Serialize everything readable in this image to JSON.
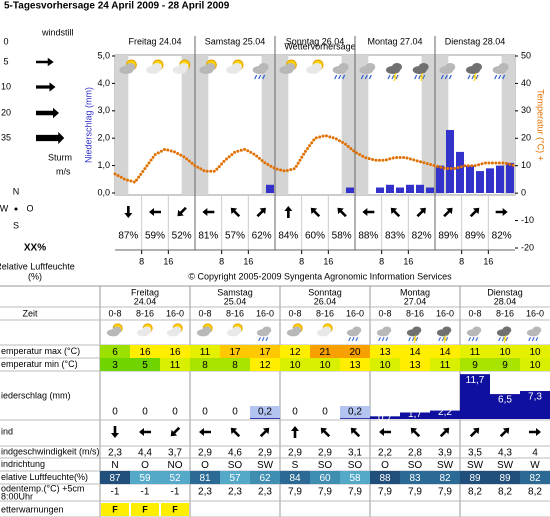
{
  "header": {
    "title": "5-Tagesvorhersage 24 April 2009 - 28 April 2009"
  },
  "legend": {
    "calm": "windstill",
    "speeds": [
      0,
      5,
      10,
      20,
      35
    ],
    "storm": "Sturm",
    "unit": "m/s",
    "compass": [
      "N",
      "W",
      "O",
      "S"
    ],
    "humidity_symbol": "XX%",
    "humidity_label": "Relative Luftfeuchte",
    "humidity_unit": "(%)"
  },
  "chart_data": {
    "type": "combo",
    "title": "Wettervorhersage",
    "days": [
      "Freitag 24.04",
      "Samstag 25.04",
      "Sonntag 26.04",
      "Montag 27.04",
      "Dienstag 28.04"
    ],
    "y_label": "Niederschlag (mm)",
    "y2_label": "Temperatur (°C) +",
    "xlim": [
      0,
      120
    ],
    "xticks": [
      8,
      16,
      {
        "value": 32,
        "label": "8"
      },
      {
        "value": 40,
        "label": "16"
      },
      {
        "value": 56,
        "label": "8"
      },
      {
        "value": 64,
        "label": "16"
      },
      {
        "value": 80,
        "label": "8"
      },
      {
        "value": 88,
        "label": "16"
      },
      {
        "value": 104,
        "label": "8"
      },
      {
        "value": 112,
        "label": "16"
      }
    ],
    "ylim": [
      0,
      5
    ],
    "yticks": [
      {
        "value": 0,
        "label": "0,0"
      },
      {
        "value": 1,
        "label": "1,0"
      },
      {
        "value": 2,
        "label": "2,0"
      },
      {
        "value": 3,
        "label": "3,0"
      },
      {
        "value": 4,
        "label": "4,0"
      },
      {
        "value": 5,
        "label": "5,0"
      }
    ],
    "y2lim": [
      -20,
      50
    ],
    "y2ticks": [
      50,
      40,
      30,
      20,
      10,
      0,
      -10,
      -20
    ],
    "series": [
      {
        "type": "bar",
        "axis": "y",
        "color": "#3333cc",
        "x": [
          0,
          3,
          6,
          9,
          12,
          15,
          18,
          21,
          24,
          27,
          30,
          33,
          36,
          39,
          42,
          45,
          48,
          51,
          54,
          57,
          60,
          63,
          66,
          69,
          72,
          75,
          78,
          81,
          84,
          87,
          90,
          93,
          96,
          99,
          102,
          105,
          108,
          111,
          114,
          117
        ],
        "values": [
          0,
          0,
          0,
          0,
          0,
          0,
          0,
          0,
          0,
          0,
          0,
          0,
          0,
          0,
          0,
          0.3,
          0,
          0,
          0,
          0,
          0,
          0,
          0,
          0.2,
          0,
          0,
          0.2,
          0.3,
          0.2,
          0.3,
          0.3,
          0.2,
          1.0,
          2.3,
          1.5,
          1.0,
          0.8,
          0.9,
          1.0,
          1.1
        ]
      },
      {
        "type": "line",
        "axis": "y2",
        "color": "#e07000",
        "x": [
          0,
          3,
          6,
          9,
          12,
          15,
          18,
          21,
          24,
          27,
          30,
          33,
          36,
          39,
          42,
          45,
          48,
          51,
          54,
          57,
          60,
          63,
          66,
          69,
          72,
          75,
          78,
          81,
          84,
          87,
          90,
          93,
          96,
          99,
          102,
          105,
          108,
          111,
          114,
          117,
          120
        ],
        "values": [
          7,
          5,
          4,
          9,
          14,
          16,
          15,
          13,
          10,
          8,
          8,
          12,
          15,
          16,
          14,
          11,
          9,
          8,
          9,
          15,
          20,
          21,
          20,
          18,
          15,
          13,
          12,
          12,
          13,
          13,
          12,
          11,
          10,
          9,
          9,
          10,
          10,
          11,
          11,
          11,
          10
        ]
      }
    ],
    "humidity_labels": [
      "87%",
      "59%",
      "52%",
      "81%",
      "57%",
      "62%",
      "84%",
      "60%",
      "58%",
      "88%",
      "83%",
      "82%",
      "89%",
      "89%",
      "82%"
    ],
    "copyright": "© Copyright 2005-2009 Syngenta Agronomic Information Services"
  },
  "table": {
    "zeit_label": "Zeit",
    "slots": [
      "0-8",
      "8-16",
      "16-0"
    ],
    "days": [
      {
        "name": "Freitag",
        "date": "24.04"
      },
      {
        "name": "Samstag",
        "date": "25.04"
      },
      {
        "name": "Sonntag",
        "date": "26.04"
      },
      {
        "name": "Montag",
        "date": "27.04"
      },
      {
        "name": "Dienstag",
        "date": "28.04"
      }
    ],
    "temp_max": {
      "label": "emperatur max (°C)",
      "values": [
        6,
        16,
        16,
        11,
        17,
        17,
        12,
        21,
        20,
        13,
        14,
        14,
        11,
        10,
        10
      ]
    },
    "temp_min": {
      "label": "emperatur min (°C)",
      "values": [
        3,
        5,
        11,
        8,
        8,
        12,
        10,
        10,
        13,
        10,
        13,
        11,
        9,
        9,
        10
      ]
    },
    "precip": {
      "label": "iederschlag (mm)",
      "values": [
        0,
        0,
        0,
        0,
        0,
        0.2,
        0,
        0,
        0.2,
        0.7,
        1.7,
        2.2,
        11.7,
        6.5,
        7.3
      ],
      "value_labels": [
        "0",
        "0",
        "0",
        "0",
        "0",
        "0,2",
        "0",
        "0",
        "0,2",
        "0,7",
        "1,7",
        "2,2",
        "11,7",
        "6,5",
        "7,3"
      ]
    },
    "wind_label": "ind",
    "wind_speed": {
      "label": "indgeschwindigkeit (m/s)",
      "values": [
        2.3,
        4.4,
        3.7,
        2.9,
        4.6,
        2.9,
        2.9,
        2.9,
        3.1,
        2.2,
        2.8,
        3.9,
        3.5,
        4.3,
        4
      ],
      "value_labels": [
        "2,3",
        "4,4",
        "3,7",
        "2,9",
        "4,6",
        "2,9",
        "2,9",
        "2,9",
        "3,1",
        "2,2",
        "2,8",
        "3,9",
        "3,5",
        "4,3",
        "4"
      ]
    },
    "wind_dir": {
      "label": "indrichtung",
      "values": [
        "N",
        "O",
        "NO",
        "O",
        "SO",
        "SW",
        "S",
        "SO",
        "SO",
        "O",
        "SO",
        "SW",
        "SW",
        "SW",
        "W"
      ]
    },
    "humidity": {
      "label": "elative Luftfeuchte(%)",
      "values": [
        87,
        59,
        52,
        81,
        57,
        62,
        84,
        60,
        58,
        88,
        83,
        82,
        89,
        89,
        82
      ]
    },
    "soil": {
      "label": "odentemp.(°C) +5cm",
      "label2": "8:00Uhr",
      "values": [
        -1,
        -1,
        -1,
        2.3,
        2.3,
        2.3,
        7.9,
        7.9,
        7.9,
        7.9,
        7.9,
        7.9,
        8.2,
        8.2,
        8.2
      ],
      "value_labels": [
        "-1",
        "-1",
        "-1",
        "2,3",
        "2,3",
        "2,3",
        "7,9",
        "7,9",
        "7,9",
        "7,9",
        "7,9",
        "7,9",
        "8,2",
        "8,2",
        "8,2"
      ]
    },
    "warnings": {
      "label": "etterwarnungen",
      "values": [
        "F",
        "F",
        "F"
      ]
    }
  }
}
